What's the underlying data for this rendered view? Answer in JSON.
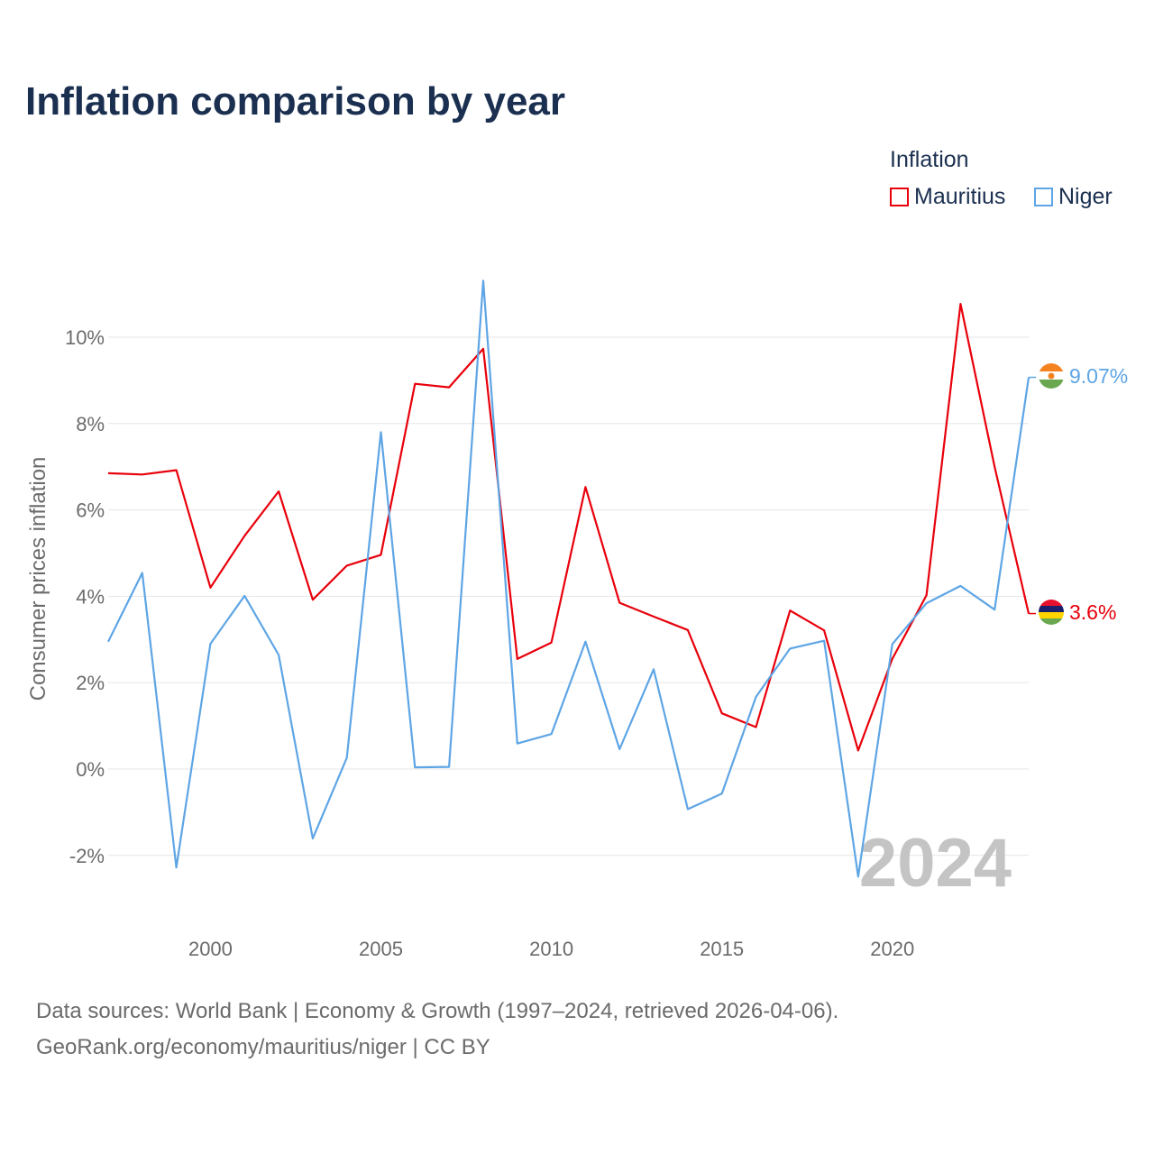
{
  "title": "Inflation comparison by year",
  "legend": {
    "title": "Inflation",
    "items": [
      {
        "name": "Mauritius",
        "color": "#e8000b"
      },
      {
        "name": "Niger",
        "color": "#5ea5e5"
      }
    ]
  },
  "footer": {
    "line1": "Data sources: World Bank | Economy & Growth (1997–2024, retrieved 2026-04-06).",
    "line2": "GeoRank.org/economy/mauritius/niger | CC BY"
  },
  "chart_data": {
    "type": "line",
    "title": "Inflation comparison by year",
    "ylabel": "Consumer prices inflation",
    "xlabel": "",
    "year_label": "2024",
    "xlim": [
      1997,
      2024
    ],
    "ylim": [
      -2.8,
      11.5
    ],
    "x_ticks": [
      2000,
      2005,
      2010,
      2015,
      2020
    ],
    "x_tick_labels": [
      "2000",
      "2005",
      "2010",
      "2015",
      "2020"
    ],
    "y_ticks": [
      -2,
      0,
      2,
      4,
      6,
      8,
      10
    ],
    "y_tick_labels": [
      "-2%",
      "0%",
      "2%",
      "4%",
      "6%",
      "8%",
      "10%"
    ],
    "x": [
      1997,
      1998,
      1999,
      2000,
      2001,
      2002,
      2003,
      2004,
      2005,
      2006,
      2007,
      2008,
      2009,
      2010,
      2011,
      2012,
      2013,
      2014,
      2015,
      2016,
      2017,
      2018,
      2019,
      2020,
      2021,
      2022,
      2023,
      2024
    ],
    "series": [
      {
        "name": "Mauritius",
        "color": "#e8000b",
        "end_label": "3.6%",
        "values": [
          6.85,
          6.82,
          6.92,
          4.2,
          5.4,
          6.43,
          3.92,
          4.71,
          4.96,
          8.92,
          8.84,
          9.73,
          2.55,
          2.93,
          6.53,
          3.85,
          3.53,
          3.22,
          1.29,
          0.97,
          3.67,
          3.21,
          0.43,
          2.55,
          4.02,
          10.77,
          7.0,
          3.6
        ]
      },
      {
        "name": "Niger",
        "color": "#5ea5e5",
        "end_label": "9.07%",
        "values": [
          2.95,
          4.54,
          -2.28,
          2.9,
          4.01,
          2.64,
          -1.61,
          0.26,
          7.8,
          0.04,
          0.05,
          11.31,
          0.59,
          0.81,
          2.95,
          0.46,
          2.31,
          -0.93,
          -0.57,
          1.67,
          2.79,
          2.97,
          -2.49,
          2.89,
          3.84,
          4.24,
          3.69,
          9.07
        ]
      }
    ]
  }
}
